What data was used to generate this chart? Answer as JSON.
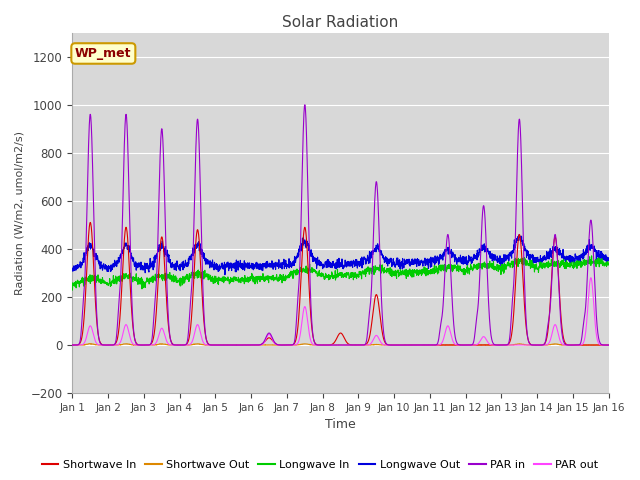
{
  "title": "Solar Radiation",
  "xlabel": "Time",
  "ylabel": "Radiation (W/m2, umol/m2/s)",
  "ylim": [
    -200,
    1300
  ],
  "xlim": [
    0,
    15
  ],
  "xtick_labels": [
    "Jan 1",
    "Jan 2",
    "Jan 3",
    "Jan 4",
    "Jan 5",
    "Jan 6",
    "Jan 7",
    "Jan 8",
    "Jan 9",
    "Jan 10",
    "Jan 11",
    "Jan 12",
    "Jan 13",
    "Jan 14",
    "Jan 15",
    "Jan 16"
  ],
  "ytick_values": [
    -200,
    0,
    200,
    400,
    600,
    800,
    1000,
    1200
  ],
  "bg_color": "#d8d8d8",
  "fig_bg_color": "#ffffff",
  "grid_color": "#ffffff",
  "label_color": "#444444",
  "series": {
    "shortwave_in_color": "#dd0000",
    "shortwave_out_color": "#dd8800",
    "longwave_in_color": "#00cc00",
    "longwave_out_color": "#0000dd",
    "par_in_color": "#9900cc",
    "par_out_color": "#ff44ff"
  },
  "legend_label": "WP_met",
  "legend_bbox_color": "#ffffcc",
  "legend_border_color": "#cc9900"
}
